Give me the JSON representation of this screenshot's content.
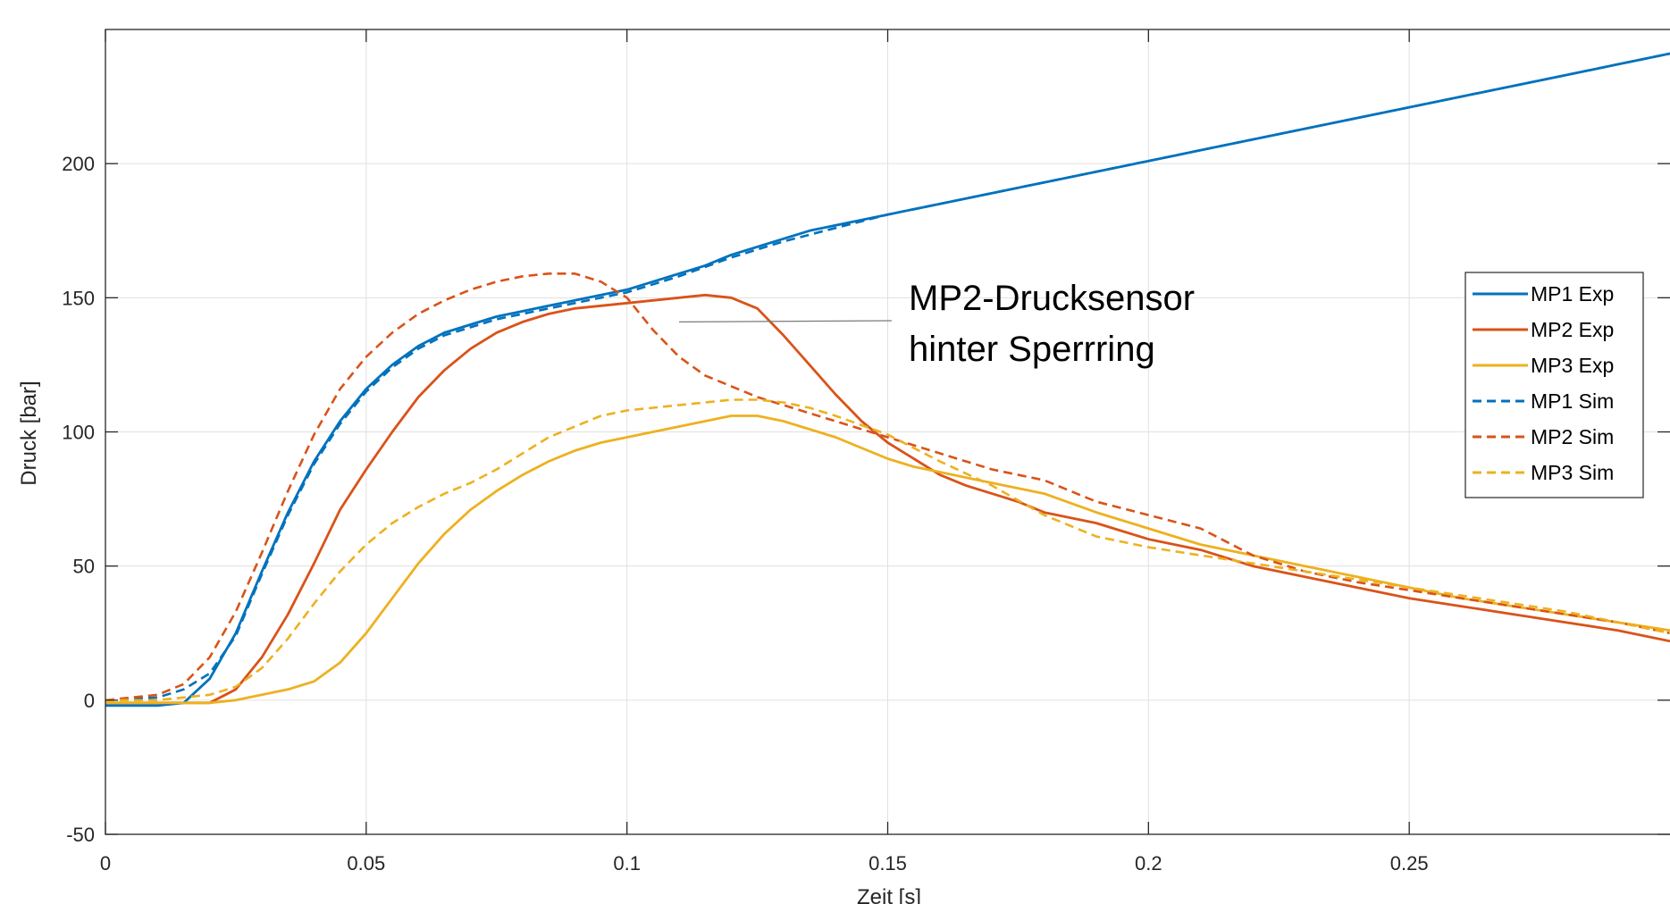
{
  "chart_data": {
    "type": "line",
    "title": "",
    "xlabel": "Zeit [s]",
    "ylabel": "Druck [bar]",
    "xlim": [
      0,
      0.3
    ],
    "ylim": [
      -50,
      250
    ],
    "xticks": [
      0,
      0.05,
      0.1,
      0.15,
      0.2,
      0.25
    ],
    "xtick_labels": [
      "0",
      "0.05",
      "0.1",
      "0.15",
      "0.2",
      "0.25"
    ],
    "yticks": [
      -50,
      0,
      50,
      100,
      150,
      200
    ],
    "ytick_labels": [
      "-50",
      "0",
      "50",
      "100",
      "150",
      "200"
    ],
    "grid": true,
    "legend_position": "right",
    "series": [
      {
        "name": "MP1 Exp",
        "color": "#0072BD",
        "style": "solid",
        "x": [
          0,
          0.01,
          0.015,
          0.02,
          0.025,
          0.03,
          0.035,
          0.04,
          0.045,
          0.05,
          0.055,
          0.06,
          0.065,
          0.07,
          0.075,
          0.08,
          0.085,
          0.09,
          0.095,
          0.1,
          0.105,
          0.11,
          0.115,
          0.12,
          0.125,
          0.13,
          0.135,
          0.14,
          0.145,
          0.15,
          0.155,
          0.16,
          0.165,
          0.17,
          0.175,
          0.18,
          0.185,
          0.19,
          0.195,
          0.2,
          0.205,
          0.21,
          0.215,
          0.22,
          0.225,
          0.23,
          0.235,
          0.24,
          0.245,
          0.25,
          0.255,
          0.26,
          0.265,
          0.27,
          0.275,
          0.28,
          0.285,
          0.29,
          0.295,
          0.3
        ],
        "y": [
          -2,
          -2,
          -1,
          8,
          25,
          48,
          70,
          89,
          104,
          116,
          125,
          132,
          137,
          140,
          143,
          145,
          147,
          149,
          151,
          153,
          156,
          159,
          162,
          166,
          169,
          172,
          175,
          177,
          179,
          181,
          183,
          185,
          187,
          189,
          191,
          193,
          195,
          197,
          199,
          201,
          203,
          205,
          207,
          209,
          211,
          213,
          215,
          217,
          219,
          221,
          223,
          225,
          227,
          229,
          231,
          233,
          235,
          237,
          239,
          241
        ]
      },
      {
        "name": "MP2 Exp",
        "color": "#D95319",
        "style": "solid",
        "x": [
          0,
          0.01,
          0.02,
          0.025,
          0.03,
          0.035,
          0.04,
          0.045,
          0.05,
          0.055,
          0.06,
          0.065,
          0.07,
          0.075,
          0.08,
          0.085,
          0.09,
          0.095,
          0.1,
          0.105,
          0.11,
          0.115,
          0.12,
          0.125,
          0.13,
          0.135,
          0.14,
          0.145,
          0.15,
          0.155,
          0.16,
          0.165,
          0.17,
          0.175,
          0.18,
          0.185,
          0.19,
          0.195,
          0.2,
          0.21,
          0.22,
          0.23,
          0.24,
          0.25,
          0.26,
          0.27,
          0.28,
          0.29,
          0.3
        ],
        "y": [
          -1,
          -1,
          -1,
          4,
          16,
          32,
          51,
          71,
          86,
          100,
          113,
          123,
          131,
          137,
          141,
          144,
          146,
          147,
          148,
          149,
          150,
          151,
          150,
          146,
          136,
          125,
          114,
          104,
          96,
          90,
          84,
          80,
          77,
          74,
          70,
          68,
          66,
          63,
          60,
          56,
          50,
          46,
          42,
          38,
          35,
          32,
          29,
          26,
          22
        ]
      },
      {
        "name": "MP3 Exp",
        "color": "#EDB120",
        "style": "solid",
        "x": [
          0,
          0.01,
          0.02,
          0.025,
          0.03,
          0.035,
          0.04,
          0.045,
          0.05,
          0.055,
          0.06,
          0.065,
          0.07,
          0.075,
          0.08,
          0.085,
          0.09,
          0.095,
          0.1,
          0.105,
          0.11,
          0.115,
          0.12,
          0.125,
          0.13,
          0.135,
          0.14,
          0.145,
          0.15,
          0.155,
          0.16,
          0.165,
          0.17,
          0.175,
          0.18,
          0.19,
          0.2,
          0.21,
          0.22,
          0.23,
          0.24,
          0.25,
          0.26,
          0.27,
          0.28,
          0.29,
          0.3
        ],
        "y": [
          -1,
          -1,
          -1,
          0,
          2,
          4,
          7,
          14,
          25,
          38,
          51,
          62,
          71,
          78,
          84,
          89,
          93,
          96,
          98,
          100,
          102,
          104,
          106,
          106,
          104,
          101,
          98,
          94,
          90,
          87,
          85,
          83,
          81,
          79,
          77,
          70,
          64,
          58,
          54,
          50,
          46,
          42,
          38,
          35,
          32,
          29,
          26
        ]
      },
      {
        "name": "MP1 Sim",
        "color": "#0072BD",
        "style": "dashed",
        "x": [
          0,
          0.01,
          0.015,
          0.02,
          0.025,
          0.03,
          0.035,
          0.04,
          0.045,
          0.05,
          0.055,
          0.06,
          0.065,
          0.07,
          0.075,
          0.08,
          0.085,
          0.09,
          0.095,
          0.1,
          0.11,
          0.12,
          0.13,
          0.14,
          0.15,
          0.16,
          0.17,
          0.18,
          0.19,
          0.2,
          0.21,
          0.22,
          0.23,
          0.24,
          0.25,
          0.26,
          0.27,
          0.28,
          0.29,
          0.3
        ],
        "y": [
          0,
          1,
          4,
          10,
          24,
          47,
          69,
          88,
          103,
          115,
          124,
          131,
          136,
          139,
          142,
          144,
          146,
          148,
          150,
          152,
          158,
          165,
          171,
          176,
          181,
          185,
          189,
          193,
          197,
          201,
          205,
          209,
          213,
          217,
          221,
          225,
          229,
          233,
          237,
          241
        ]
      },
      {
        "name": "MP2 Sim",
        "color": "#D95319",
        "style": "dashed",
        "x": [
          0,
          0.01,
          0.015,
          0.02,
          0.025,
          0.03,
          0.035,
          0.04,
          0.045,
          0.05,
          0.055,
          0.06,
          0.065,
          0.07,
          0.075,
          0.08,
          0.085,
          0.09,
          0.095,
          0.1,
          0.105,
          0.11,
          0.115,
          0.12,
          0.125,
          0.13,
          0.14,
          0.15,
          0.16,
          0.17,
          0.18,
          0.19,
          0.2,
          0.21,
          0.22,
          0.23,
          0.24,
          0.25,
          0.26,
          0.27,
          0.28,
          0.29,
          0.3
        ],
        "y": [
          0,
          2,
          6,
          16,
          33,
          55,
          78,
          99,
          116,
          128,
          137,
          144,
          149,
          153,
          156,
          158,
          159,
          159,
          156,
          150,
          138,
          128,
          121,
          117,
          113,
          110,
          104,
          98,
          92,
          86,
          82,
          74,
          69,
          64,
          54,
          48,
          44,
          41,
          38,
          35,
          32,
          29,
          25
        ]
      },
      {
        "name": "MP3 Sim",
        "color": "#EDB120",
        "style": "dashed",
        "x": [
          0,
          0.01,
          0.02,
          0.025,
          0.03,
          0.035,
          0.04,
          0.045,
          0.05,
          0.055,
          0.06,
          0.065,
          0.07,
          0.075,
          0.08,
          0.085,
          0.09,
          0.095,
          0.1,
          0.105,
          0.11,
          0.115,
          0.12,
          0.125,
          0.13,
          0.135,
          0.14,
          0.15,
          0.16,
          0.17,
          0.18,
          0.19,
          0.2,
          0.21,
          0.22,
          0.23,
          0.24,
          0.25,
          0.26,
          0.27,
          0.28,
          0.29,
          0.3
        ],
        "y": [
          0,
          0,
          2,
          5,
          12,
          23,
          36,
          48,
          58,
          66,
          72,
          77,
          81,
          86,
          92,
          98,
          102,
          106,
          108,
          109,
          110,
          111,
          112,
          112,
          111,
          109,
          106,
          99,
          89,
          80,
          69,
          61,
          57,
          54,
          51,
          48,
          45,
          42,
          39,
          36,
          33,
          29,
          25
        ]
      }
    ],
    "annotation": {
      "lines": [
        "MP2-Drucksensor",
        "hinter Sperrring"
      ],
      "points_to": {
        "x": 0.11,
        "y": 141
      }
    }
  }
}
